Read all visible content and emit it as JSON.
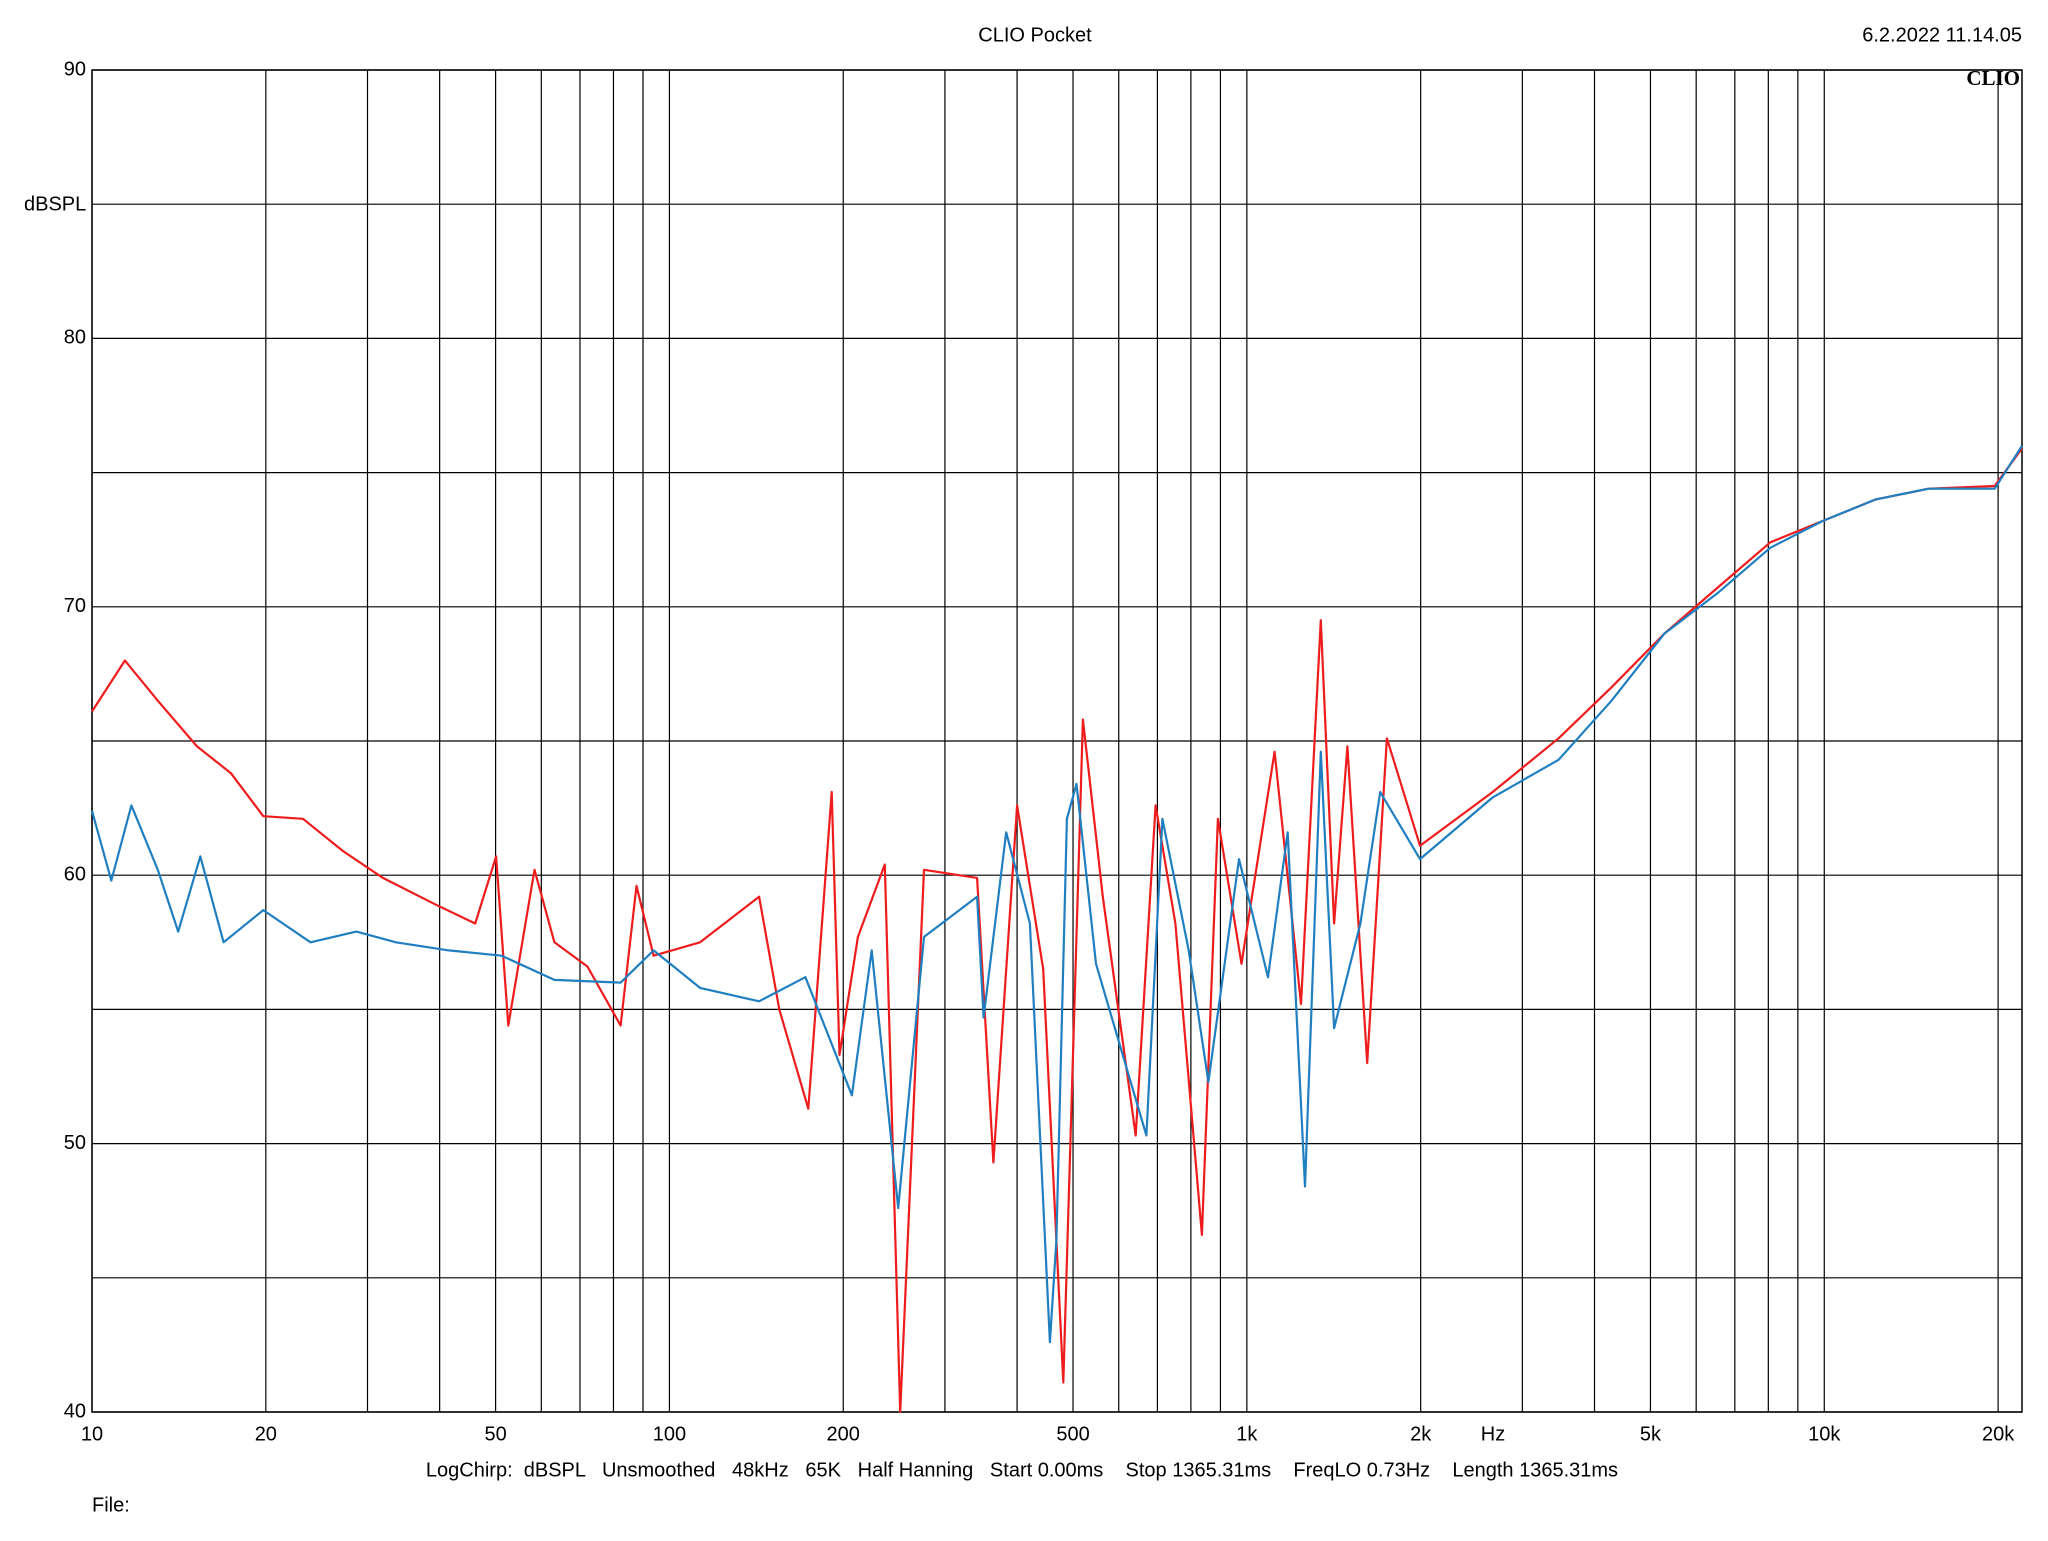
{
  "chart_data": {
    "type": "line",
    "title": "CLIO Pocket",
    "timestamp": "6.2.2022 11.14.05",
    "logo": "CLIO",
    "y_label": "dBSPL",
    "x_label": "Hz",
    "footer": "LogChirp:  dBSPL   Unsmoothed   48kHz   65K   Half Hanning   Start 0.00ms    Stop 1365.31ms    FreqLO 0.73Hz    Length 1365.31ms",
    "file_label": "File:",
    "log_x": true,
    "grid": true,
    "xlim": [
      10,
      22000
    ],
    "ylim": [
      40,
      90
    ],
    "xticks": [
      10,
      20,
      50,
      100,
      200,
      500,
      {
        "value": 1000,
        "label": "1k"
      },
      {
        "value": 2000,
        "label": "2k"
      },
      {
        "value": 5000,
        "label": "5k"
      },
      {
        "value": 10000,
        "label": "10k"
      },
      {
        "value": 20000,
        "label": "20k"
      }
    ],
    "minor_xticks": [
      30,
      40,
      60,
      70,
      80,
      90,
      300,
      400,
      600,
      700,
      800,
      900,
      3000,
      4000,
      6000,
      7000,
      8000,
      9000
    ],
    "yticks": [
      40,
      50,
      60,
      70,
      80,
      90
    ],
    "minor_yticks": [
      45,
      55,
      65,
      75,
      85
    ],
    "series": [
      {
        "color": "#ee1c1c",
        "x": [
          10,
          11.4,
          13.0,
          15.2,
          17.4,
          19.8,
          23.2,
          27.2,
          31.9,
          39.4,
          46.1,
          50.1,
          52.6,
          58.4,
          63.2,
          72.1,
          82.3,
          87.7,
          93.9,
          113,
          143,
          155,
          174,
          191,
          197,
          212,
          236,
          251,
          276,
          341,
          364,
          400,
          444,
          481,
          520,
          563,
          642,
          695,
          752,
          836,
          891,
          979,
          1117,
          1241,
          1343,
          1416,
          1493,
          1616,
          1748,
          1995,
          2665,
          3467,
          4281,
          5286,
          6526,
          8059,
          9947,
          12280,
          15160,
          19730,
          22000
        ],
        "values": [
          66.1,
          68.0,
          66.5,
          64.8,
          63.8,
          62.2,
          62.1,
          60.9,
          59.9,
          58.9,
          58.2,
          60.7,
          54.4,
          60.2,
          57.5,
          56.6,
          54.4,
          59.6,
          57.0,
          57.5,
          59.2,
          55.0,
          51.3,
          63.1,
          53.3,
          57.7,
          60.4,
          40.0,
          60.2,
          59.9,
          49.3,
          62.6,
          56.5,
          41.1,
          65.8,
          59.2,
          50.3,
          62.6,
          58.2,
          46.6,
          62.1,
          56.7,
          64.6,
          55.2,
          69.5,
          58.2,
          64.8,
          53.0,
          65.1,
          61.1,
          63.1,
          65.1,
          67.0,
          69.0,
          70.7,
          72.4,
          73.2,
          74.0,
          74.4,
          74.5,
          75.9
        ]
      },
      {
        "color": "#1f7fc0",
        "x": [
          10,
          10.8,
          11.7,
          13.0,
          14.1,
          15.4,
          16.9,
          19.8,
          23.9,
          28.7,
          33.6,
          41.5,
          51.2,
          63.2,
          82.3,
          93.9,
          113,
          143,
          172,
          207,
          224,
          249,
          276,
          341,
          350,
          383,
          421,
          456,
          468,
          488,
          507,
          548,
          670,
          714,
          793,
          858,
          969,
          1088,
          1177,
          1261,
          1343,
          1416,
          1573,
          1702,
          1995,
          2665,
          3467,
          4281,
          5286,
          6526,
          8059,
          9947,
          12280,
          15160,
          19730,
          22000
        ],
        "values": [
          62.4,
          59.8,
          62.6,
          60.2,
          57.9,
          60.7,
          57.5,
          58.7,
          57.5,
          57.9,
          57.5,
          57.2,
          57.0,
          56.1,
          56.0,
          57.2,
          55.8,
          55.3,
          56.2,
          51.8,
          57.2,
          47.6,
          57.7,
          59.2,
          54.7,
          61.6,
          58.2,
          42.6,
          46.4,
          62.1,
          63.4,
          56.7,
          50.3,
          62.1,
          57.2,
          52.3,
          60.6,
          56.2,
          61.6,
          48.4,
          64.6,
          54.3,
          58.2,
          63.1,
          60.6,
          62.9,
          64.3,
          66.5,
          69.0,
          70.5,
          72.2,
          73.2,
          74.0,
          74.4,
          74.4,
          76.0
        ]
      }
    ]
  }
}
